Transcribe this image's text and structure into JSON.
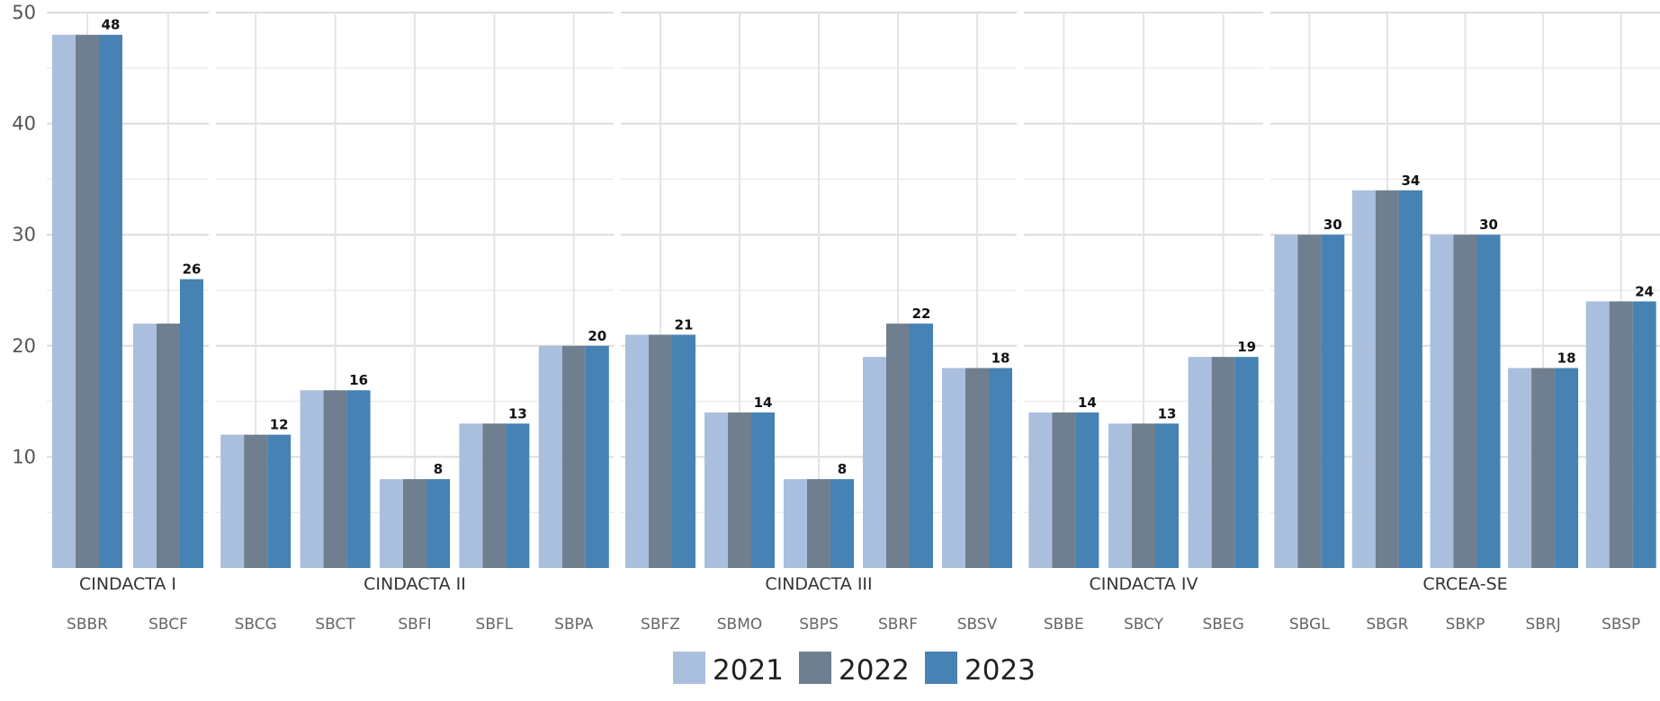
{
  "chart_data": {
    "type": "bar",
    "ylim": [
      0,
      50
    ],
    "yticks": [
      10,
      20,
      30,
      40,
      50
    ],
    "grid": true,
    "legend_position": "bottom",
    "groups": [
      {
        "name": "CINDACTA I",
        "categories": [
          "SBBR",
          "SBCF"
        ]
      },
      {
        "name": "CINDACTA II",
        "categories": [
          "SBCG",
          "SBCT",
          "SBFI",
          "SBFL",
          "SBPA"
        ]
      },
      {
        "name": "CINDACTA III",
        "categories": [
          "SBFZ",
          "SBMO",
          "SBPS",
          "SBRF",
          "SBSV"
        ]
      },
      {
        "name": "CINDACTA IV",
        "categories": [
          "SBBE",
          "SBCY",
          "SBEG"
        ]
      },
      {
        "name": "CRCEA-SE",
        "categories": [
          "SBGL",
          "SBGR",
          "SBKP",
          "SBRJ",
          "SBSP"
        ]
      }
    ],
    "categories": [
      "SBBR",
      "SBCF",
      "SBCG",
      "SBCT",
      "SBFI",
      "SBFL",
      "SBPA",
      "SBFZ",
      "SBMO",
      "SBPS",
      "SBRF",
      "SBSV",
      "SBBE",
      "SBCY",
      "SBEG",
      "SBGL",
      "SBGR",
      "SBKP",
      "SBRJ",
      "SBSP"
    ],
    "series": [
      {
        "name": "2021",
        "color": "#aabfdd",
        "values": [
          48,
          22,
          12,
          16,
          8,
          13,
          20,
          21,
          14,
          8,
          19,
          18,
          14,
          13,
          19,
          30,
          34,
          30,
          18,
          24
        ]
      },
      {
        "name": "2022",
        "color": "#6f7f8f",
        "values": [
          48,
          22,
          12,
          16,
          8,
          13,
          20,
          21,
          14,
          8,
          22,
          18,
          14,
          13,
          19,
          30,
          34,
          30,
          18,
          24
        ]
      },
      {
        "name": "2023",
        "color": "#4682b4",
        "values": [
          48,
          26,
          12,
          16,
          8,
          13,
          20,
          21,
          14,
          8,
          22,
          18,
          14,
          13,
          19,
          30,
          34,
          30,
          18,
          24
        ]
      }
    ],
    "data_labels": [
      48,
      26,
      12,
      16,
      8,
      13,
      20,
      21,
      14,
      8,
      22,
      18,
      14,
      13,
      19,
      30,
      34,
      30,
      18,
      24
    ]
  }
}
